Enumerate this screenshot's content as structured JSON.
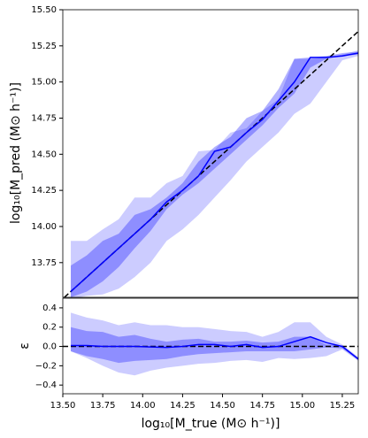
{
  "chart_data": [
    {
      "type": "line",
      "y_label": "log₁₀[M_pred (M⊙ h⁻¹)]",
      "x": [
        13.55,
        13.65,
        13.75,
        13.85,
        13.95,
        14.05,
        14.15,
        14.25,
        14.35,
        14.45,
        14.55,
        14.65,
        14.75,
        14.85,
        14.95,
        15.05,
        15.15,
        15.25,
        15.35
      ],
      "series": [
        {
          "color": "#0000ff",
          "values": [
            13.55,
            13.65,
            13.75,
            13.85,
            13.95,
            14.05,
            14.17,
            14.25,
            14.35,
            14.52,
            14.55,
            14.65,
            14.74,
            14.87,
            15.0,
            15.17,
            15.17,
            15.18,
            15.2
          ]
        }
      ],
      "bands": [
        {
          "color": "#0000ff",
          "alpha": 0.2,
          "lower": [
            13.5,
            13.52,
            13.53,
            13.57,
            13.65,
            13.75,
            13.9,
            13.98,
            14.08,
            14.2,
            14.32,
            14.45,
            14.55,
            14.65,
            14.78,
            14.85,
            15.0,
            15.15,
            15.18
          ],
          "upper": [
            13.9,
            13.9,
            13.98,
            14.05,
            14.2,
            14.2,
            14.3,
            14.35,
            14.52,
            14.53,
            14.65,
            14.68,
            14.8,
            14.88,
            15.16,
            15.16,
            15.17,
            15.19,
            15.22
          ]
        },
        {
          "color": "#0000ff",
          "alpha": 0.3,
          "lower": [
            13.51,
            13.55,
            13.62,
            13.72,
            13.85,
            13.97,
            14.12,
            14.22,
            14.3,
            14.4,
            14.5,
            14.6,
            14.7,
            14.82,
            14.92,
            15.1,
            15.16,
            15.18,
            15.19
          ],
          "upper": [
            13.73,
            13.8,
            13.9,
            13.95,
            14.08,
            14.12,
            14.2,
            14.3,
            14.45,
            14.55,
            14.62,
            14.75,
            14.8,
            14.95,
            15.16,
            15.17,
            15.18,
            15.2,
            15.21
          ]
        }
      ],
      "diagonal": true,
      "xlim": [
        13.5,
        15.35
      ],
      "ylim": [
        13.51,
        15.5
      ],
      "yticks": [
        13.75,
        {
          "value": 14,
          "label": "14.00"
        },
        14.25,
        {
          "value": 14.5,
          "label": "14.50"
        },
        14.75,
        {
          "value": 15,
          "label": "15.00"
        },
        15.25,
        {
          "value": 15.5,
          "label": "15.50"
        }
      ]
    },
    {
      "type": "line",
      "y_label": "ε",
      "x_label": "log₁₀[M_true (M⊙ h⁻¹)]",
      "x": [
        13.55,
        13.65,
        13.75,
        13.85,
        13.95,
        14.05,
        14.15,
        14.25,
        14.35,
        14.45,
        14.55,
        14.65,
        14.75,
        14.85,
        14.95,
        15.05,
        15.15,
        15.25,
        15.35
      ],
      "series": [
        {
          "color": "#0000ff",
          "values": [
            0.01,
            0.01,
            0,
            0,
            0,
            -0.005,
            -0.01,
            0,
            0.02,
            0.02,
            0,
            0.02,
            -0.01,
            0,
            0.05,
            0.1,
            0.04,
            0,
            -0.13
          ]
        }
      ],
      "bands": [
        {
          "color": "#0000ff",
          "alpha": 0.2,
          "lower": [
            -0.05,
            -0.12,
            -0.2,
            -0.27,
            -0.3,
            -0.25,
            -0.22,
            -0.2,
            -0.18,
            -0.17,
            -0.15,
            -0.14,
            -0.16,
            -0.12,
            -0.13,
            -0.12,
            -0.1,
            -0.03,
            -0.15
          ],
          "upper": [
            0.35,
            0.3,
            0.27,
            0.22,
            0.25,
            0.22,
            0.22,
            0.2,
            0.2,
            0.18,
            0.16,
            0.15,
            0.1,
            0.15,
            0.25,
            0.25,
            0.1,
            0.02,
            -0.11
          ]
        },
        {
          "color": "#0000ff",
          "alpha": 0.3,
          "lower": [
            -0.05,
            -0.1,
            -0.13,
            -0.17,
            -0.15,
            -0.14,
            -0.13,
            -0.1,
            -0.08,
            -0.07,
            -0.06,
            -0.05,
            -0.05,
            -0.05,
            -0.05,
            -0.03,
            -0.01,
            -0.02,
            -0.14
          ],
          "upper": [
            0.2,
            0.16,
            0.15,
            0.1,
            0.12,
            0.08,
            0.05,
            0.07,
            0.08,
            0.05,
            0.05,
            0.06,
            0.04,
            0.05,
            0.1,
            0.1,
            0.02,
            0.01,
            -0.12
          ]
        }
      ],
      "zero_line": true,
      "xlim": [
        13.5,
        15.35
      ],
      "ylim": [
        -0.49,
        0.5
      ],
      "xticks": [
        {
          "value": 13.5,
          "label": "13.50"
        },
        13.75,
        {
          "value": 14,
          "label": "14.00"
        },
        14.25,
        {
          "value": 14.5,
          "label": "14.50"
        },
        14.75,
        {
          "value": 15,
          "label": "15.00"
        },
        15.25
      ],
      "yticks": [
        {
          "value": -0.4,
          "label": "−0.4"
        },
        {
          "value": -0.2,
          "label": "−0.2"
        },
        {
          "value": 0,
          "label": "0.0"
        },
        0.2,
        0.4
      ]
    }
  ]
}
